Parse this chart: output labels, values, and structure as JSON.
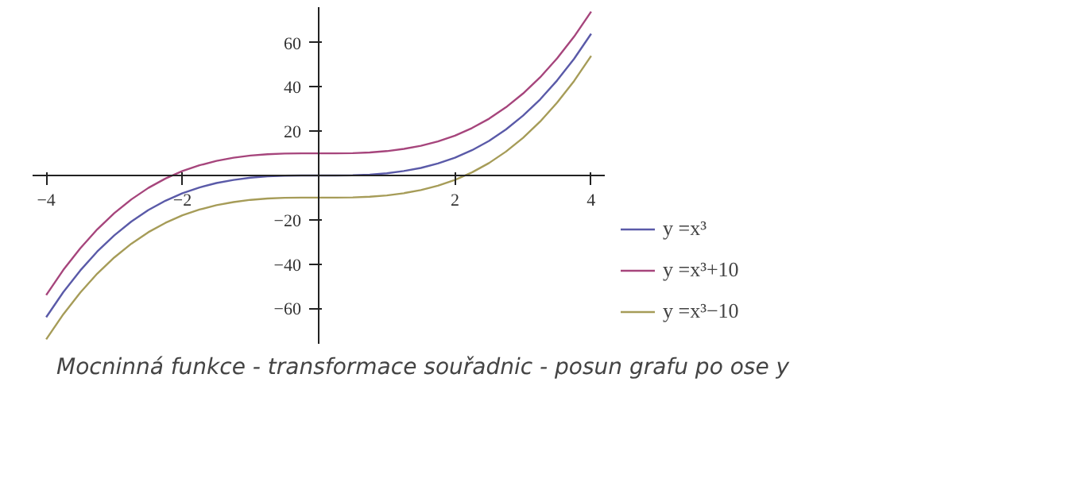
{
  "chart_data": {
    "type": "line",
    "x": [
      -4,
      -3.75,
      -3.5,
      -3.25,
      -3,
      -2.75,
      -2.5,
      -2.25,
      -2,
      -1.75,
      -1.5,
      -1.25,
      -1,
      -0.75,
      -0.5,
      -0.25,
      0,
      0.25,
      0.5,
      0.75,
      1,
      1.25,
      1.5,
      1.75,
      2,
      2.25,
      2.5,
      2.75,
      3,
      3.25,
      3.5,
      3.75,
      4
    ],
    "series": [
      {
        "name": "y =x³",
        "color": "#5a5aa8",
        "values": [
          -64,
          -52.7,
          -42.9,
          -34.3,
          -27,
          -20.8,
          -15.6,
          -11.4,
          -8,
          -5.4,
          -3.4,
          -2.0,
          -1,
          -0.4,
          -0.1,
          0.0,
          0,
          0.0,
          0.1,
          0.4,
          1,
          2.0,
          3.4,
          5.4,
          8,
          11.4,
          15.6,
          20.8,
          27,
          34.3,
          42.9,
          52.7,
          64
        ]
      },
      {
        "name": "y =x³+10",
        "color": "#a6457c",
        "values": [
          -54,
          -42.7,
          -32.9,
          -24.3,
          -17,
          -10.8,
          -5.6,
          -1.4,
          2,
          4.6,
          6.6,
          8.0,
          9,
          9.6,
          9.9,
          10.0,
          10,
          10.0,
          10.1,
          10.4,
          11,
          12.0,
          13.4,
          15.4,
          18,
          21.4,
          25.6,
          30.8,
          37,
          44.3,
          52.9,
          62.7,
          74
        ]
      },
      {
        "name": "y =x³−10",
        "color": "#a69c58",
        "values": [
          -74,
          -62.7,
          -52.9,
          -44.3,
          -37,
          -30.8,
          -25.6,
          -21.4,
          -18,
          -15.4,
          -13.4,
          -12.0,
          -11,
          -10.4,
          -10.1,
          -10.0,
          -10,
          -10.0,
          -9.9,
          -9.6,
          -9,
          -8.0,
          -6.6,
          -4.6,
          -2,
          1.4,
          5.6,
          10.8,
          17,
          24.3,
          32.9,
          42.7,
          54
        ]
      }
    ],
    "xlim": [
      -4.2,
      4.2
    ],
    "ylim": [
      -76,
      76
    ],
    "xticks": [
      -4,
      -2,
      2,
      4
    ],
    "yticks": [
      -60,
      -40,
      -20,
      20,
      40,
      60
    ],
    "grid": false,
    "legend": "right",
    "marker": "none",
    "line_style": "solid",
    "annotations": [
      "Mocninná funkce - transformace souřadnic - posun grafu po ose y"
    ]
  }
}
